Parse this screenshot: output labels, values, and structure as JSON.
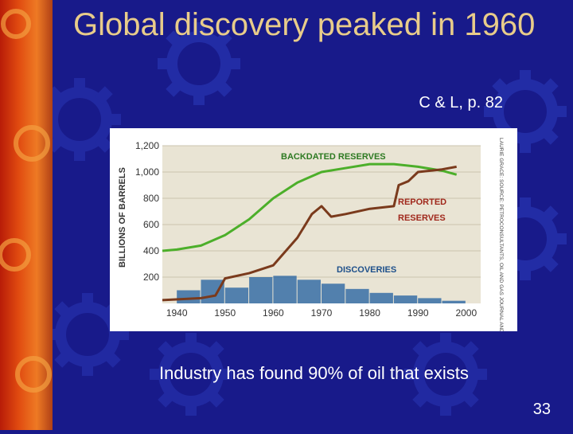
{
  "slide": {
    "title": "Global discovery peaked in 1960",
    "citation": "C & L, p. 82",
    "caption": "Industry has found 90% of oil that exists",
    "page_number": "33"
  },
  "colors": {
    "background": "#181a8a",
    "title": "#e8cc8a",
    "text": "#ffffff",
    "backdated": "#4caf2a",
    "reported": "#7a3a1c",
    "discoveries": "#1f5fa0",
    "label_green": "#2d7a22",
    "label_red": "#a0281c",
    "label_blue": "#1d4f8a"
  },
  "chart_data": {
    "type": "line",
    "ylabel": "BILLIONS OF BARRELS",
    "ylim": [
      0,
      1200
    ],
    "xlim": [
      1937,
      2003
    ],
    "yticks": [
      "1,200",
      "1,000",
      "800",
      "600",
      "400",
      "200"
    ],
    "ytick_values": [
      1200,
      1000,
      800,
      600,
      400,
      200
    ],
    "xticks": [
      "1940",
      "1950",
      "1960",
      "1970",
      "1980",
      "1990",
      "2000"
    ],
    "xtick_values": [
      1940,
      1950,
      1960,
      1970,
      1980,
      1990,
      2000
    ],
    "source_note": "LAURIE GRACE: SOURCE: PETROCONSULTANTS, OIL AND GAS JOURNAL AND U.S. GEOLOGICAL SURVEY",
    "series": [
      {
        "name": "BACKDATED RESERVES",
        "kind": "line",
        "x": [
          1937,
          1940,
          1945,
          1950,
          1955,
          1960,
          1965,
          1970,
          1975,
          1980,
          1985,
          1990,
          1995,
          1998
        ],
        "y": [
          400,
          410,
          440,
          520,
          640,
          800,
          920,
          1000,
          1030,
          1060,
          1060,
          1040,
          1010,
          980
        ]
      },
      {
        "name": "REPORTED RESERVES",
        "kind": "line",
        "x": [
          1937,
          1945,
          1948,
          1950,
          1955,
          1960,
          1965,
          1968,
          1970,
          1972,
          1975,
          1980,
          1985,
          1986,
          1988,
          1990,
          1995,
          1998
        ],
        "y": [
          25,
          40,
          60,
          190,
          230,
          290,
          500,
          680,
          740,
          660,
          680,
          720,
          740,
          900,
          930,
          1000,
          1020,
          1040
        ]
      },
      {
        "name": "DISCOVERIES",
        "kind": "bars",
        "bins": [
          {
            "x0": 1940,
            "x1": 1945,
            "y": 100
          },
          {
            "x0": 1945,
            "x1": 1950,
            "y": 180
          },
          {
            "x0": 1950,
            "x1": 1955,
            "y": 120
          },
          {
            "x0": 1955,
            "x1": 1960,
            "y": 200
          },
          {
            "x0": 1960,
            "x1": 1965,
            "y": 210
          },
          {
            "x0": 1965,
            "x1": 1970,
            "y": 180
          },
          {
            "x0": 1970,
            "x1": 1975,
            "y": 150
          },
          {
            "x0": 1975,
            "x1": 1980,
            "y": 110
          },
          {
            "x0": 1980,
            "x1": 1985,
            "y": 80
          },
          {
            "x0": 1985,
            "x1": 1990,
            "y": 60
          },
          {
            "x0": 1990,
            "x1": 1995,
            "y": 40
          },
          {
            "x0": 1995,
            "x1": 2000,
            "y": 20
          }
        ]
      }
    ]
  }
}
